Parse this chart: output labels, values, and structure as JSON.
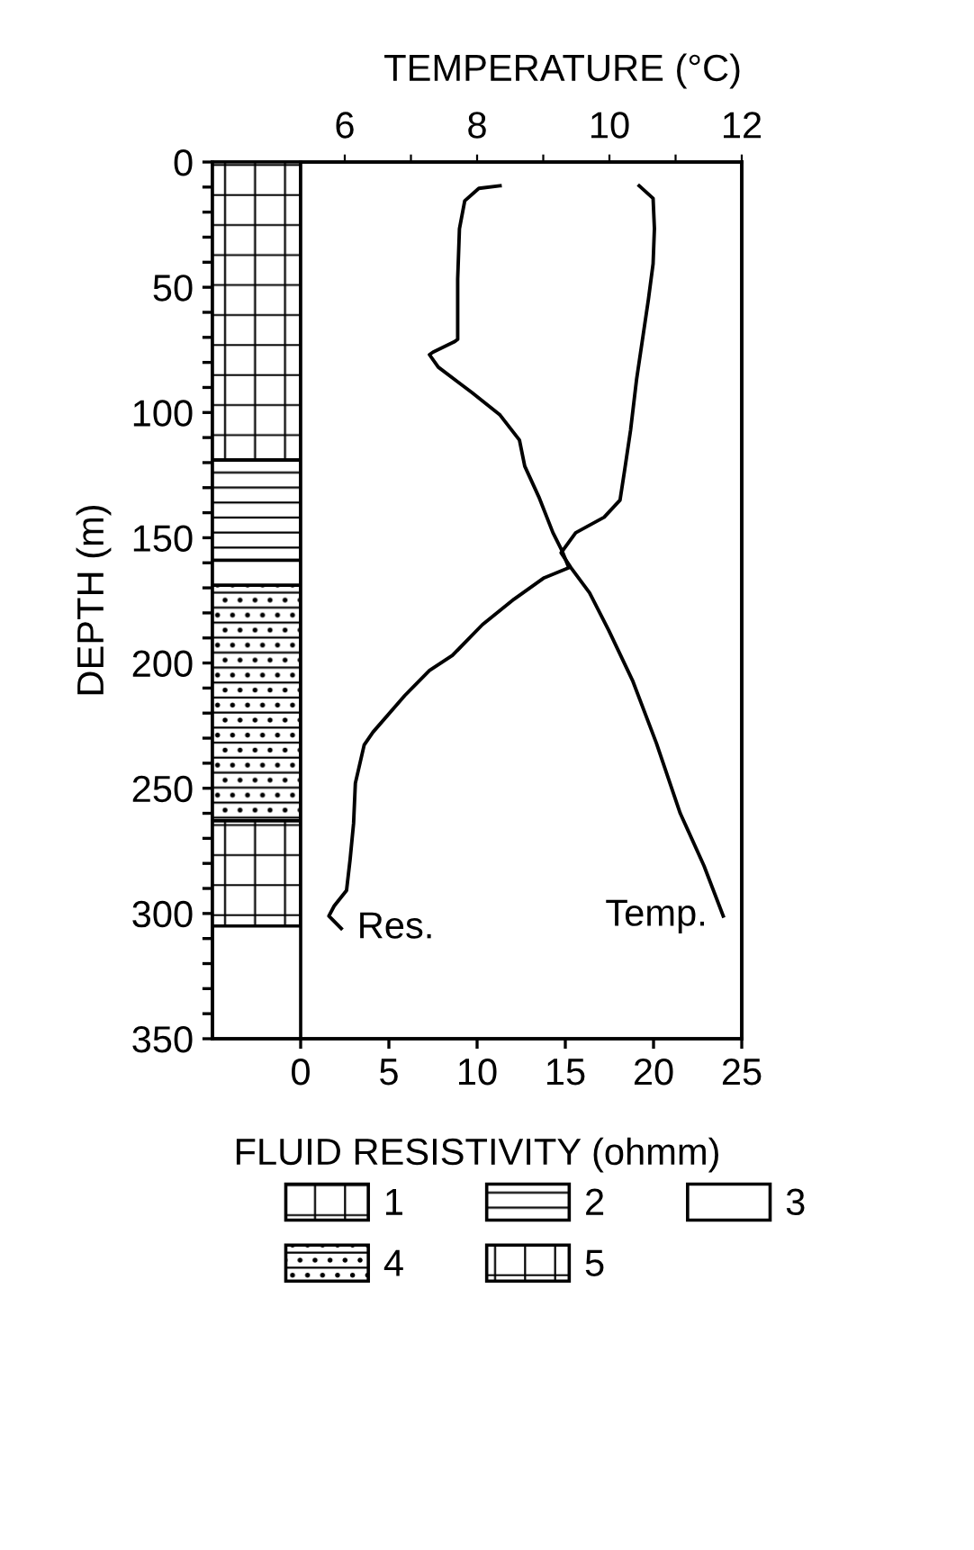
{
  "chart_data": [
    {
      "type": "bar",
      "stacked": true,
      "categories": [
        null
      ],
      "ylim": [
        350,
        0
      ],
      "legend": "bottom",
      "series": [
        {
          "name": "1",
          "color": "#000000",
          "values": [
            119
          ]
        },
        {
          "name": "2",
          "color": "#000000",
          "values": [
            40
          ]
        },
        {
          "name": "3",
          "color": "#000000",
          "values": [
            10
          ]
        },
        {
          "name": "4",
          "color": "#000000",
          "values": [
            94
          ]
        },
        {
          "name": "5",
          "color": "#000000",
          "values": [
            42
          ]
        }
      ]
    },
    {
      "type": "line",
      "orientation": "horizontal",
      "xlabel": "FLUID RESISTIVITY (ohmm)",
      "x2label": "TEMPERATURE (°C)",
      "ylabel": "DEPTH (m)",
      "xlim": [
        -5,
        25
      ],
      "xticks": [
        0,
        5,
        10,
        15,
        20,
        25
      ],
      "x2lim": [
        4,
        12
      ],
      "x2ticks": [
        6,
        {
          "value": 7,
          "label": null
        },
        8,
        {
          "value": 9,
          "label": null
        },
        10,
        {
          "value": 11,
          "label": null
        },
        12
      ],
      "ylim": [
        350,
        0
      ],
      "yticks": [
        0,
        {
          "value": 10,
          "label": null
        },
        {
          "value": 20,
          "label": null
        },
        {
          "value": 30,
          "label": null
        },
        {
          "value": 40,
          "label": null
        },
        50,
        {
          "value": 60,
          "label": null
        },
        {
          "value": 70,
          "label": null
        },
        {
          "value": 80,
          "label": null
        },
        {
          "value": 90,
          "label": null
        },
        100,
        {
          "value": 110,
          "label": null
        },
        {
          "value": 120,
          "label": null
        },
        {
          "value": 130,
          "label": null
        },
        {
          "value": 140,
          "label": null
        },
        150,
        {
          "value": 160,
          "label": null
        },
        {
          "value": 170,
          "label": null
        },
        {
          "value": 180,
          "label": null
        },
        {
          "value": 190,
          "label": null
        },
        200,
        {
          "value": 210,
          "label": null
        },
        {
          "value": 220,
          "label": null
        },
        {
          "value": 230,
          "label": null
        },
        {
          "value": 240,
          "label": null
        },
        250,
        {
          "value": 260,
          "label": null
        },
        {
          "value": 270,
          "label": null
        },
        {
          "value": 280,
          "label": null
        },
        {
          "value": 290,
          "label": null
        },
        300,
        {
          "value": 310,
          "label": null
        },
        {
          "value": 320,
          "label": null
        },
        {
          "value": 330,
          "label": null
        },
        {
          "value": 340,
          "label": null
        },
        350
      ],
      "grid": false,
      "marker": "none",
      "line_style": "solid",
      "series": [
        {
          "name": "Res.",
          "color": "#000000",
          "x": [
            9.5,
            10.5,
            15.5,
            26.6,
            46.7,
            70.8,
            71.8,
            75.9,
            76.9,
            81.9,
            92,
            101,
            111,
            121.4,
            133.7,
            148,
            155,
            162,
            166,
            174.5,
            184.7,
            197,
            203,
            213,
            227.6,
            232.7,
            248,
            264,
            278.6,
            290.8,
            297,
            301,
            306
          ],
          "values": [
            11.3,
            10.1,
            9.3,
            9.0,
            8.9,
            8.9,
            8.7,
            7.5,
            7.3,
            7.8,
            9.7,
            11.3,
            12.4,
            12.7,
            13.5,
            14.3,
            14.8,
            15.2,
            13.8,
            12.1,
            10.3,
            8.6,
            7.3,
            5.9,
            4.1,
            3.6,
            3.1,
            3.0,
            2.8,
            2.6,
            1.9,
            1.6,
            2.3
          ]
        },
        {
          "name": "Temp.",
          "color": "#000000",
          "axis": "x2",
          "x": [
            9.5,
            14.5,
            26.6,
            40.6,
            54.7,
            70.8,
            86.9,
            107,
            123,
            135,
            141.8,
            148,
            156,
            162,
            172,
            187,
            207,
            232,
            260,
            281,
            301
          ],
          "values": [
            10.45,
            10.66,
            10.68,
            10.66,
            10.59,
            10.5,
            10.41,
            10.32,
            10.23,
            10.16,
            9.92,
            9.49,
            9.27,
            9.42,
            9.7,
            9.99,
            10.35,
            10.71,
            11.07,
            11.43,
            11.72
          ]
        }
      ]
    }
  ]
}
